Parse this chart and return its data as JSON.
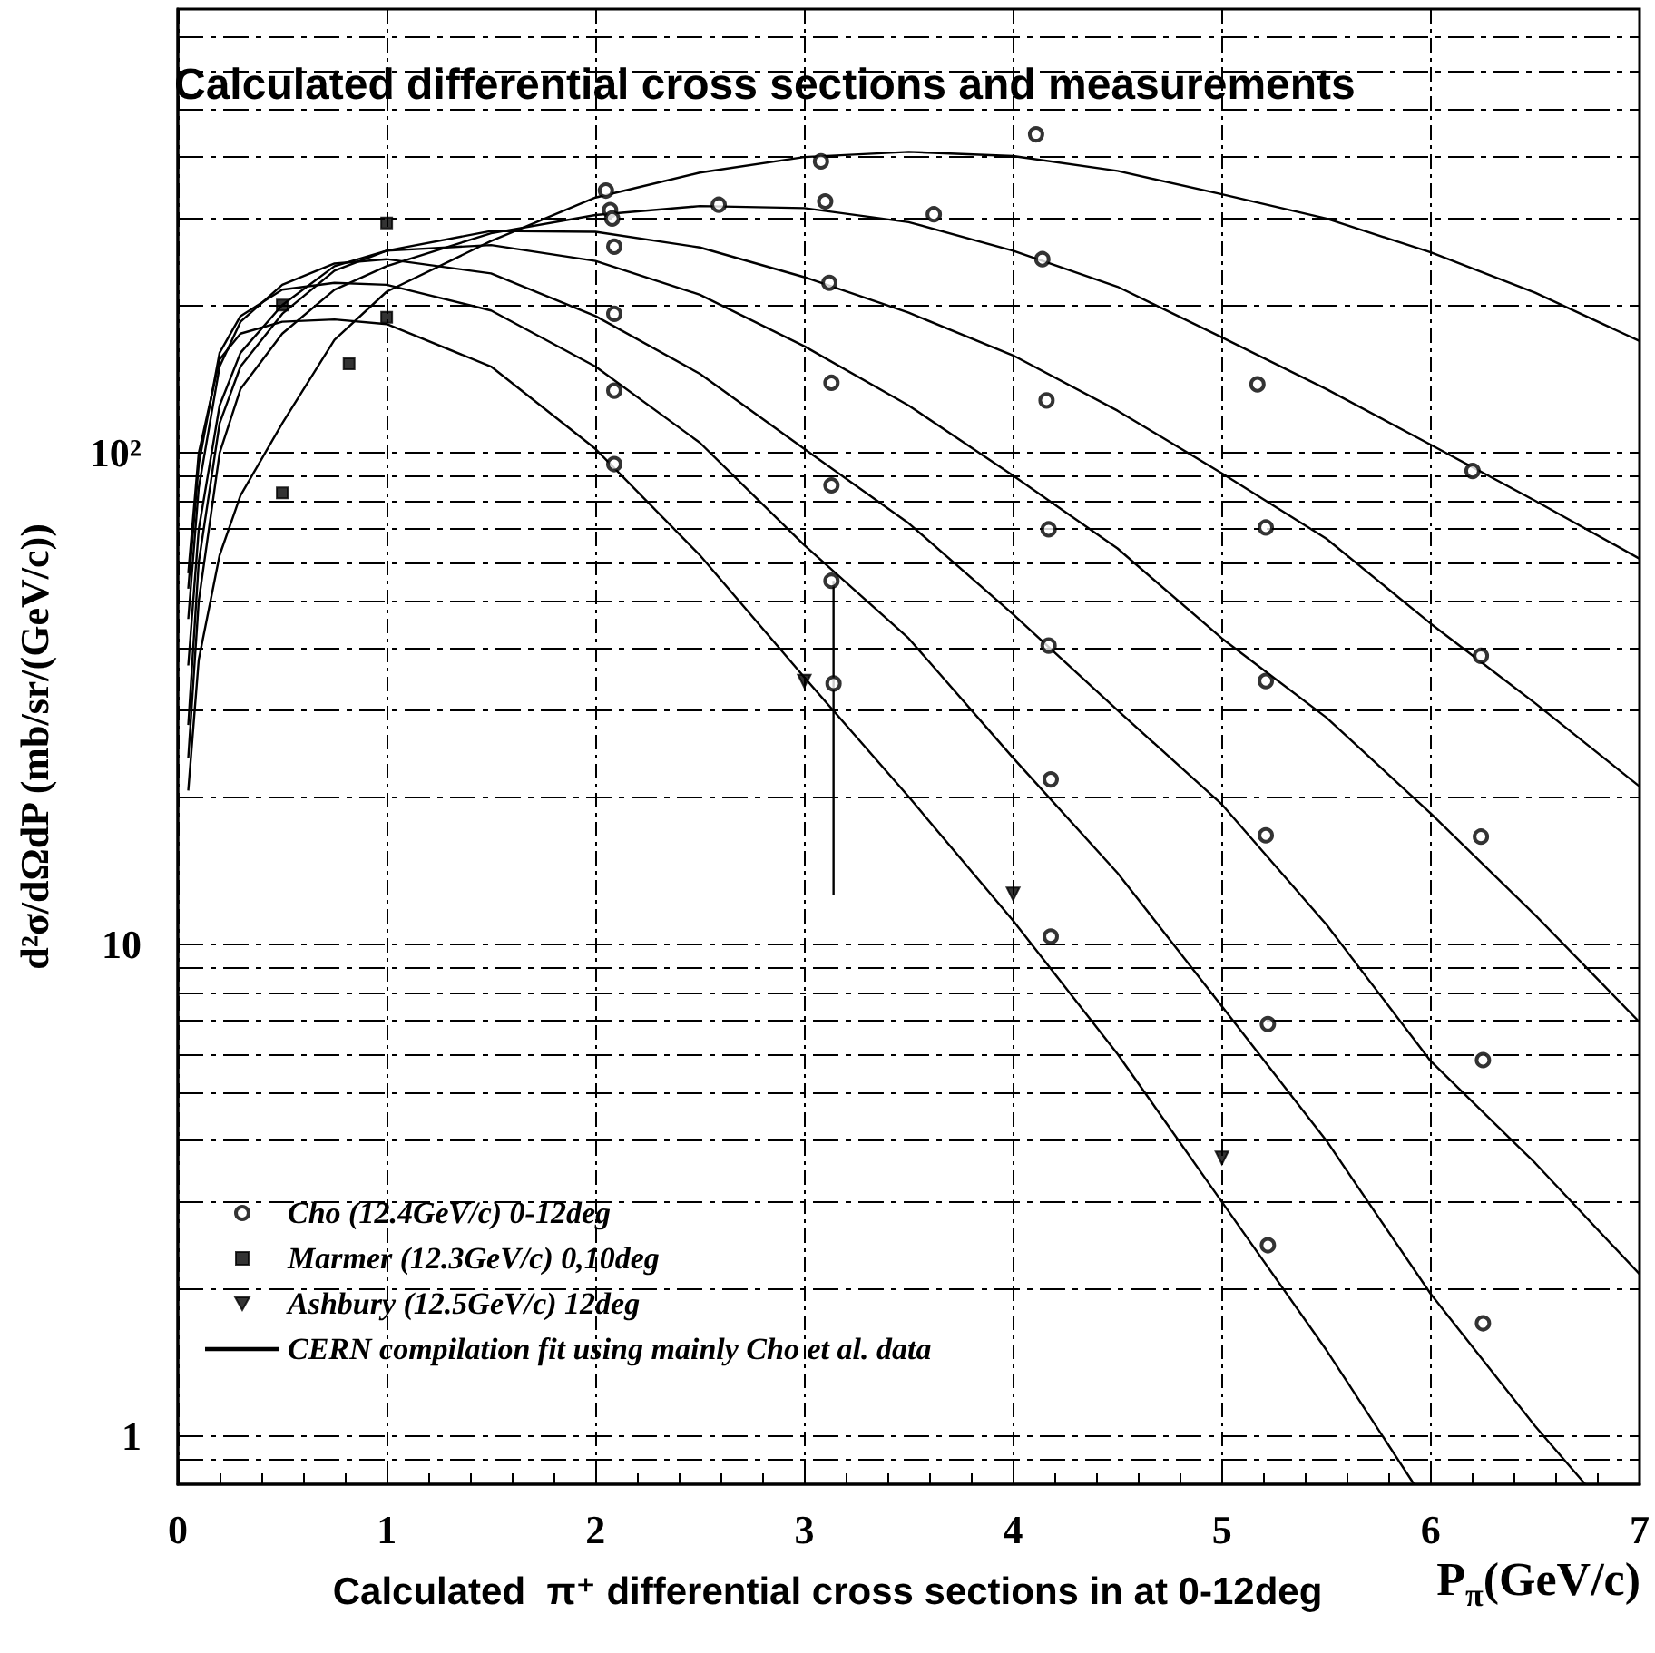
{
  "chart_data": {
    "type": "scatter",
    "title": "Calculated differential cross sections and measurements",
    "xlabel": "P$_{π}$(GeV/c)",
    "ylabel": "d²σ/dΩdP (mb/sr/(GeV/c))",
    "annotations": [
      "Calculated  π⁺ differential cross sections in at 0-12deg"
    ],
    "xlim": [
      0,
      7
    ],
    "xticks": [
      0,
      1,
      2,
      3,
      4,
      5,
      6,
      7
    ],
    "ylim": [
      0.8,
      800
    ],
    "yticks": [
      {
        "value": 0.9,
        "label": null
      },
      1,
      {
        "value": 2,
        "label": null
      },
      {
        "value": 3,
        "label": null
      },
      {
        "value": 4,
        "label": null
      },
      {
        "value": 5,
        "label": null
      },
      {
        "value": 6,
        "label": null
      },
      {
        "value": 7,
        "label": null
      },
      {
        "value": 8,
        "label": null
      },
      {
        "value": 9,
        "label": null
      },
      10,
      {
        "value": 20,
        "label": null
      },
      {
        "value": 30,
        "label": null
      },
      {
        "value": 40,
        "label": null
      },
      {
        "value": 50,
        "label": null
      },
      {
        "value": 60,
        "label": null
      },
      {
        "value": 70,
        "label": null
      },
      {
        "value": 80,
        "label": null
      },
      {
        "value": 90,
        "label": null
      },
      {
        "value": 100,
        "label": "10²"
      },
      {
        "value": 200,
        "label": null
      },
      {
        "value": 300,
        "label": null
      },
      {
        "value": 400,
        "label": null
      },
      {
        "value": 500,
        "label": null
      },
      {
        "value": 600,
        "label": null
      },
      {
        "value": 700,
        "label": null
      }
    ],
    "log": true,
    "grid": true,
    "legend": "bottom left",
    "series": [
      {
        "name": "Cho (12.4GeV/c) 0-12deg",
        "type": "scatter",
        "marker": "circle",
        "color": "#000000",
        "x": [
          2.05,
          2.07,
          2.08,
          2.09,
          2.09,
          2.09,
          2.09,
          2.59,
          3.08,
          3.1,
          3.12,
          3.13,
          3.13,
          3.13,
          3.14,
          3.62,
          4.11,
          4.14,
          4.16,
          4.17,
          4.17,
          4.18,
          4.18,
          5.17,
          5.21,
          5.21,
          5.21,
          5.22,
          5.22,
          6.2,
          6.24,
          6.24,
          6.25,
          6.25
        ],
        "values": [
          342,
          312,
          300,
          263,
          192,
          134,
          95,
          320,
          392,
          325,
          222,
          139,
          86,
          55,
          34,
          306,
          445,
          248,
          128,
          70,
          40.6,
          21.7,
          10.4,
          138,
          70.6,
          34.4,
          16.7,
          6.9,
          2.45,
          92,
          38.7,
          16.6,
          5.83,
          1.7
        ],
        "errors": [
          null,
          null,
          null,
          null,
          null,
          null,
          null,
          null,
          null,
          null,
          null,
          null,
          null,
          null,
          [
            12.6,
            55
          ],
          null,
          null,
          null,
          null,
          null,
          null,
          null,
          null,
          null,
          null,
          null,
          null,
          null,
          null,
          null,
          null,
          null,
          null,
          null
        ]
      },
      {
        "name": "Marmer (12.3GeV/c) 0,10deg",
        "type": "scatter",
        "marker": "square",
        "color": "#000000",
        "x": [
          0.5,
          0.5,
          0.82,
          1.0,
          1.0
        ],
        "values": [
          200,
          83,
          152,
          294,
          189
        ]
      },
      {
        "name": "Ashbury (12.5GeV/c) 12deg",
        "type": "scatter",
        "marker": "triangle",
        "color": "#000000",
        "x": [
          3.0,
          4.0,
          5.0
        ],
        "values": [
          34.4,
          12.7,
          3.69
        ]
      },
      {
        "name": "CERN compilation fit using mainly Cho et al. data",
        "type": "line",
        "marker": "none",
        "color": "#000000",
        "x": [
          0.05,
          0.1,
          0.2,
          0.3,
          0.5,
          0.75,
          1,
          1.5,
          2,
          2.5,
          3,
          3.5,
          4,
          4.5,
          5,
          5.5,
          6,
          6.5,
          7
        ],
        "values": [
          20.6,
          38,
          62,
          82,
          115,
          170,
          213,
          270,
          331,
          372,
          400,
          410,
          402,
          375,
          336,
          300,
          256,
          212,
          169
        ]
      },
      {
        "type": "line",
        "marker": "none",
        "color": "#000000",
        "x": [
          0.05,
          0.1,
          0.2,
          0.3,
          0.5,
          0.75,
          1,
          1.5,
          2,
          2.5,
          3,
          3.5,
          4,
          4.5,
          5,
          5.5,
          6,
          6.5,
          7
        ],
        "values": [
          24,
          50,
          100,
          135,
          175,
          215,
          240,
          280,
          305,
          318,
          315,
          295,
          258,
          218,
          172,
          135,
          104,
          80,
          61
        ]
      },
      {
        "type": "line",
        "marker": "none",
        "color": "#000000",
        "x": [
          0.05,
          0.1,
          0.2,
          0.3,
          0.5,
          0.75,
          1,
          1.5,
          2,
          2.5,
          3,
          3.5,
          4,
          4.5,
          5,
          5.5,
          6,
          6.5,
          7
        ],
        "values": [
          28,
          60,
          115,
          150,
          192,
          235,
          258,
          283,
          282,
          262,
          228,
          193,
          158,
          122,
          91,
          67,
          45,
          31,
          21
        ]
      },
      {
        "type": "line",
        "marker": "none",
        "color": "#000000",
        "x": [
          0.05,
          0.1,
          0.2,
          0.3,
          0.5,
          0.75,
          1,
          1.5,
          2,
          2.5,
          3,
          3.5,
          4,
          4.5,
          5,
          5.5,
          6,
          6.5,
          7
        ],
        "values": [
          37,
          70,
          125,
          160,
          200,
          240,
          258,
          265,
          246,
          210,
          165,
          125,
          90,
          64,
          42,
          29,
          18.5,
          11.5,
          6.96
        ]
      },
      {
        "type": "line",
        "marker": "none",
        "color": "#000000",
        "x": [
          0.05,
          0.1,
          0.2,
          0.3,
          0.5,
          0.75,
          1,
          1.5,
          2,
          2.5,
          3,
          3.5,
          4,
          4.5,
          5,
          5.5,
          6,
          6.5,
          7
        ],
        "values": [
          46,
          85,
          150,
          185,
          220,
          243,
          248,
          232,
          190,
          145,
          102,
          72,
          47,
          30,
          19.3,
          11,
          5.8,
          3.6,
          2.14
        ]
      },
      {
        "type": "line",
        "marker": "none",
        "color": "#000000",
        "x": [
          0.05,
          0.1,
          0.2,
          0.3,
          0.5,
          0.75,
          1,
          1.5,
          2,
          2.5,
          3,
          3.5,
          4,
          4.5,
          5,
          5.5,
          6,
          6.5,
          6.74
        ],
        "values": [
          53,
          95,
          160,
          190,
          215,
          222,
          220,
          195,
          150,
          105,
          65,
          42,
          24,
          14,
          7.5,
          4,
          1.95,
          1.05,
          0.8
        ]
      },
      {
        "type": "line",
        "marker": "none",
        "color": "#000000",
        "x": [
          0.05,
          0.1,
          0.2,
          0.3,
          0.5,
          0.75,
          1,
          1.5,
          2,
          2.5,
          3,
          3.5,
          4,
          4.5,
          5,
          5.5,
          5.92
        ],
        "values": [
          57,
          100,
          155,
          175,
          185,
          187,
          183,
          150,
          102,
          62,
          35,
          20,
          11.2,
          6,
          3.0,
          1.5,
          0.8
        ]
      }
    ]
  }
}
